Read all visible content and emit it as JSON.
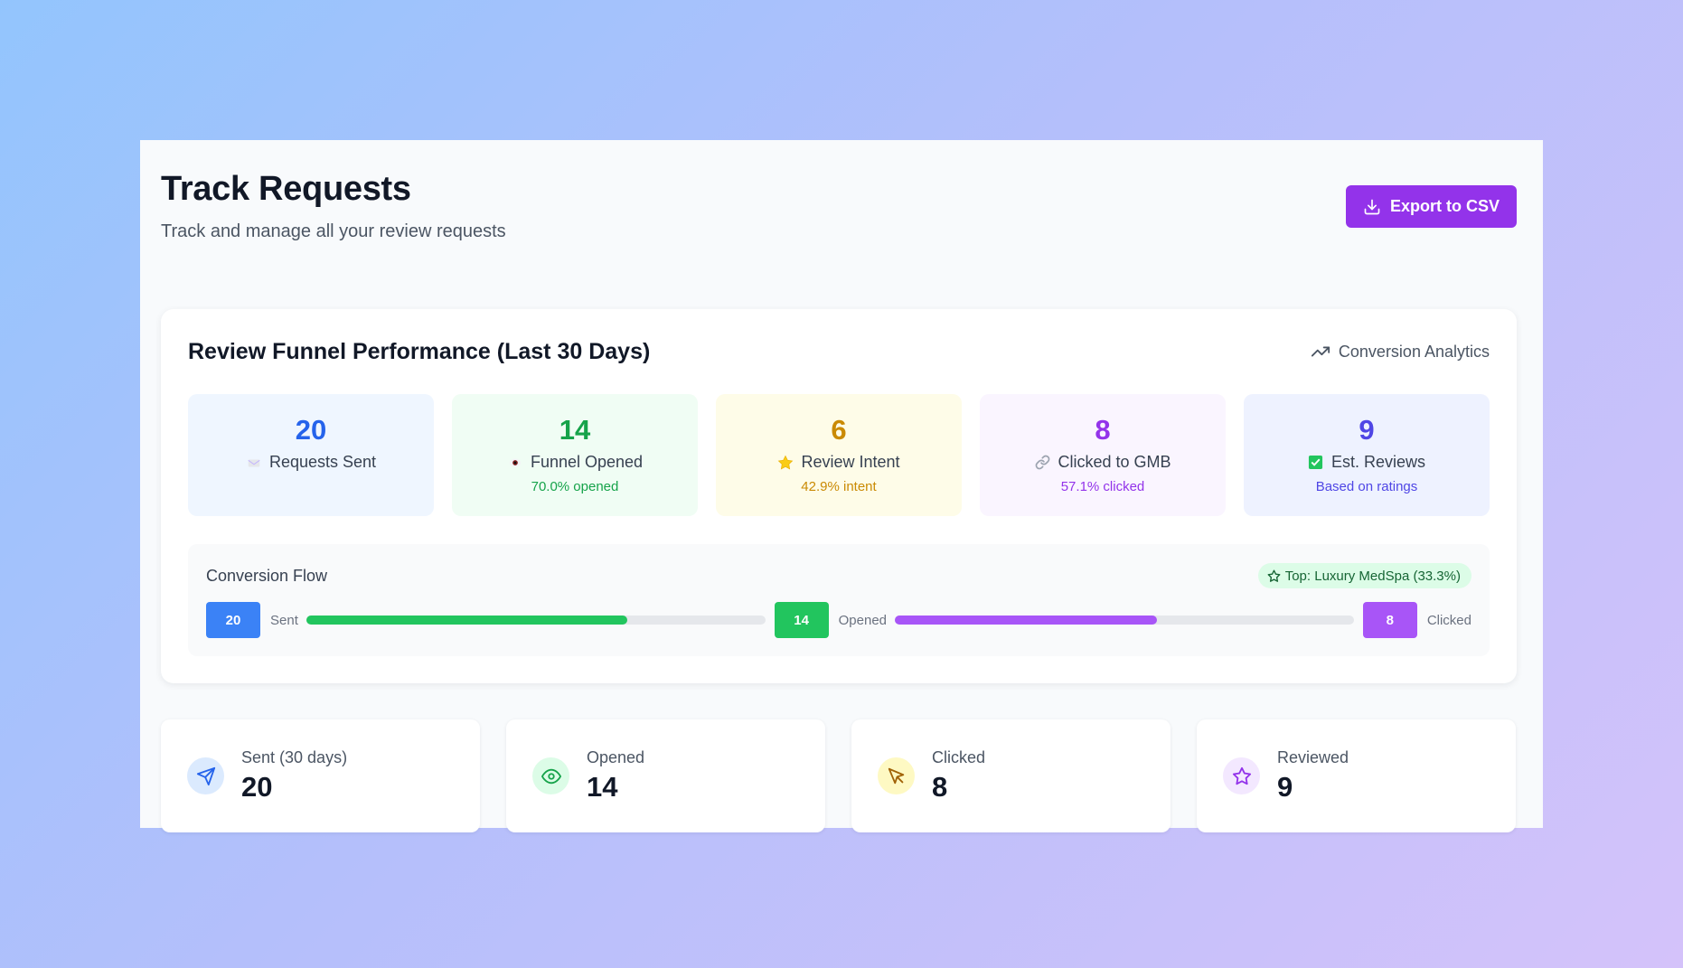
{
  "header": {
    "title": "Track Requests",
    "subtitle": "Track and manage all your review requests",
    "export_label": "Export to CSV"
  },
  "funnel": {
    "title": "Review Funnel Performance (Last 30 Days)",
    "analytics_label": "Conversion Analytics",
    "stats": [
      {
        "value": "20",
        "label": "Requests Sent",
        "icon": "envelope-emoji",
        "sub": ""
      },
      {
        "value": "14",
        "label": "Funnel Opened",
        "icon": "eye-emoji",
        "sub": "70.0% opened"
      },
      {
        "value": "6",
        "label": "Review Intent",
        "icon": "star-emoji",
        "sub": "42.9% intent"
      },
      {
        "value": "8",
        "label": "Clicked to GMB",
        "icon": "link-emoji",
        "sub": "57.1% clicked"
      },
      {
        "value": "9",
        "label": "Est. Reviews",
        "icon": "check-box-emoji",
        "sub": "Based on ratings"
      }
    ],
    "colors": {
      "sent": "#2563eb",
      "opened": "#16a34a",
      "intent": "#ca8a04",
      "clicked": "#9333ea",
      "reviews": "#4f46e5"
    }
  },
  "flow": {
    "title": "Conversion Flow",
    "top_badge": "Top: Luxury MedSpa (33.3%)",
    "steps": [
      {
        "value": "20",
        "label": "Sent",
        "color": "#3b82f6"
      },
      {
        "value": "14",
        "label": "Opened",
        "color": "#22c55e"
      },
      {
        "value": "8",
        "label": "Clicked",
        "color": "#a855f7"
      }
    ],
    "bars": [
      {
        "fraction": 0.7,
        "color": "#22c55e"
      },
      {
        "fraction": 0.571,
        "color": "#a855f7"
      }
    ]
  },
  "kpis": [
    {
      "label": "Sent (30 days)",
      "value": "20",
      "icon": "send-icon"
    },
    {
      "label": "Opened",
      "value": "14",
      "icon": "eye-icon"
    },
    {
      "label": "Clicked",
      "value": "8",
      "icon": "cursor-icon"
    },
    {
      "label": "Reviewed",
      "value": "9",
      "icon": "star-icon"
    }
  ]
}
